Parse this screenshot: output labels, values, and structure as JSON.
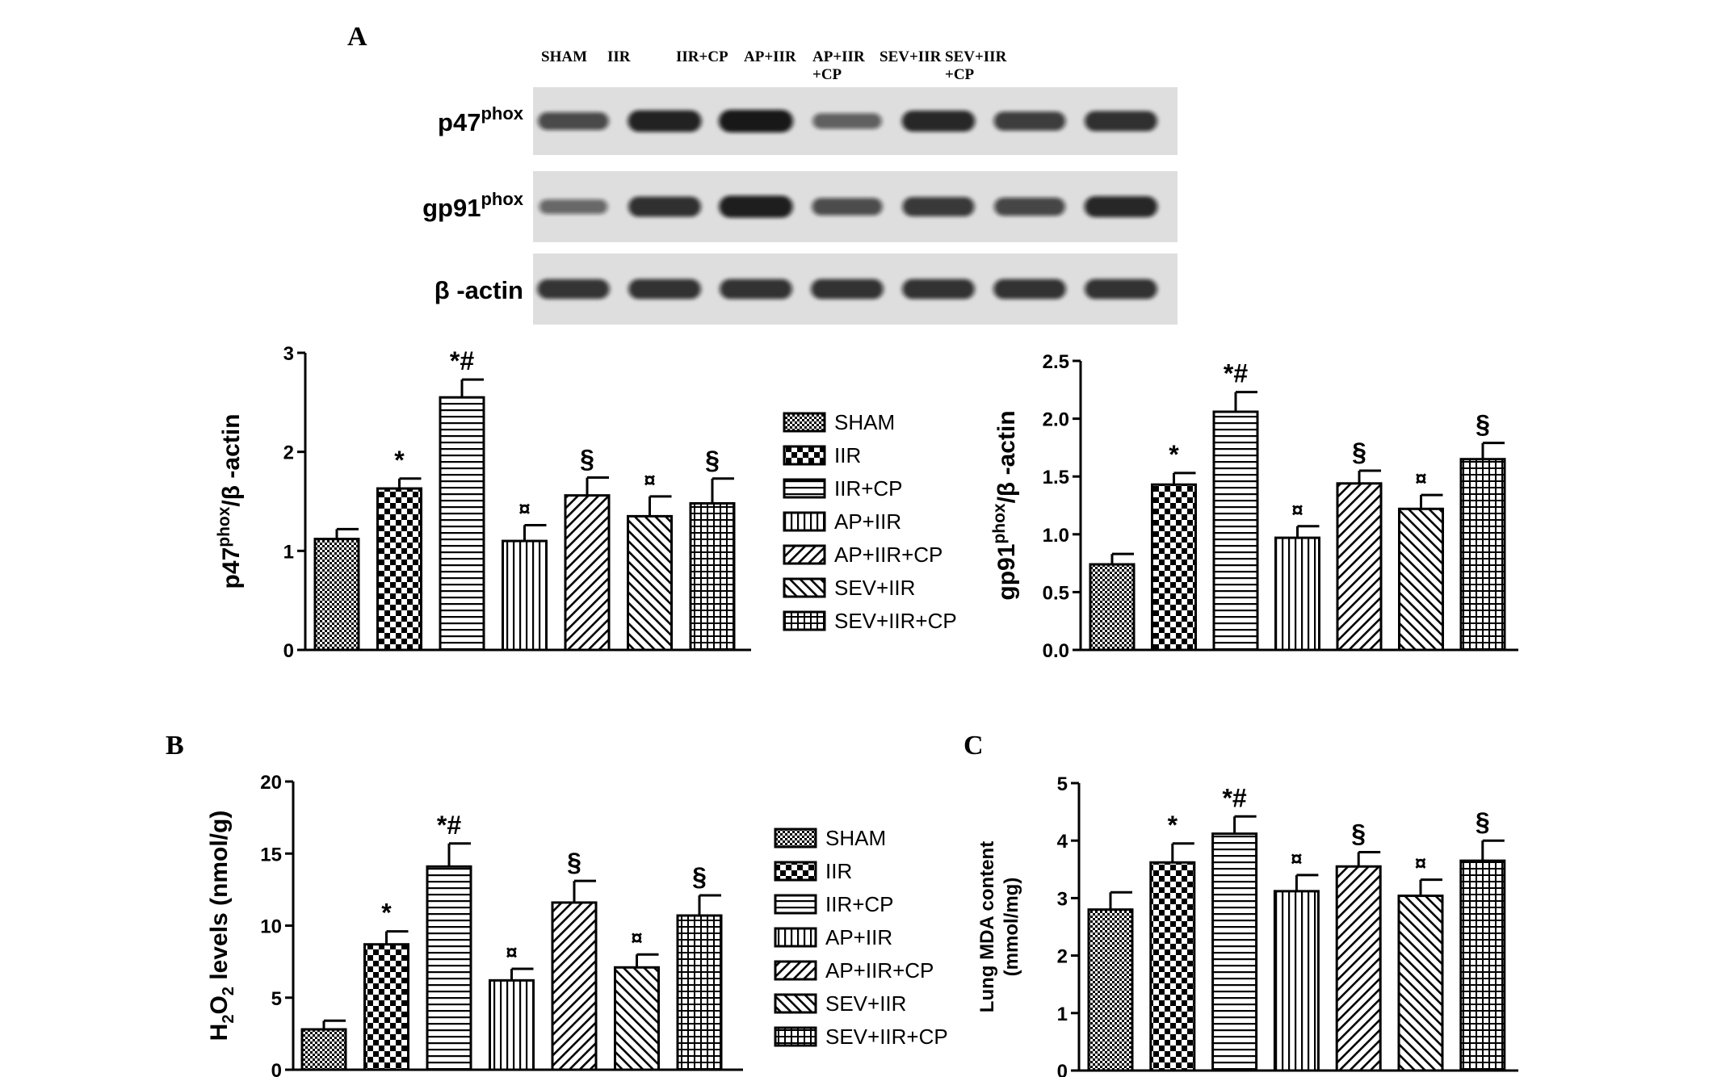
{
  "panels": {
    "a": "A",
    "b": "B",
    "c": "C"
  },
  "blot": {
    "lanes": [
      "SHAM",
      "IIR",
      "IIR+CP",
      "AP+IIR",
      "AP+IIR\n+CP",
      "SEV+IIR",
      "SEV+IIR\n+CP"
    ],
    "rows": [
      {
        "label_main": "p47",
        "label_sup": "phox",
        "intensity": [
          0.62,
          0.92,
          1.0,
          0.45,
          0.88,
          0.72,
          0.82
        ]
      },
      {
        "label_main": "gp91",
        "label_sup": "phox",
        "intensity": [
          0.38,
          0.82,
          0.95,
          0.6,
          0.75,
          0.65,
          0.88
        ]
      },
      {
        "label_main": "β -actin",
        "label_sup": "",
        "intensity": [
          0.78,
          0.8,
          0.8,
          0.8,
          0.8,
          0.8,
          0.8
        ]
      }
    ]
  },
  "legend": [
    "SHAM",
    "IIR",
    "IIR+CP",
    "AP+IIR",
    "AP+IIR+CP",
    "SEV+IIR",
    "SEV+IIR+CP"
  ],
  "patterns": [
    "fine-check",
    "big-check",
    "h-stripe",
    "v-stripe",
    "diag-up",
    "diag-down",
    "grid"
  ],
  "chart_data": [
    {
      "id": "p47",
      "type": "bar",
      "categories": [
        "SHAM",
        "IIR",
        "IIR+CP",
        "AP+IIR",
        "AP+IIR+CP",
        "SEV+IIR",
        "SEV+IIR+CP"
      ],
      "values": [
        1.12,
        1.63,
        2.55,
        1.1,
        1.56,
        1.35,
        1.48
      ],
      "errors": [
        0.1,
        0.1,
        0.18,
        0.16,
        0.18,
        0.2,
        0.25
      ],
      "annotations": [
        "",
        "*",
        "*#",
        "¤",
        "§",
        "¤",
        "§"
      ],
      "ylabel_main": "p47",
      "ylabel_sup": "phox",
      "ylabel_rest": "/β -actin",
      "ylim": [
        0,
        3
      ],
      "yticks": [
        "0",
        "1",
        "2",
        "3"
      ]
    },
    {
      "id": "gp91",
      "type": "bar",
      "categories": [
        "SHAM",
        "IIR",
        "IIR+CP",
        "AP+IIR",
        "AP+IIR+CP",
        "SEV+IIR",
        "SEV+IIR+CP"
      ],
      "values": [
        0.74,
        1.43,
        2.06,
        0.97,
        1.44,
        1.22,
        1.65
      ],
      "errors": [
        0.09,
        0.1,
        0.17,
        0.1,
        0.11,
        0.12,
        0.14
      ],
      "annotations": [
        "",
        "*",
        "*#",
        "¤",
        "§",
        "¤",
        "§"
      ],
      "ylabel_main": "gp91",
      "ylabel_sup": "phox",
      "ylabel_rest": "/β -actin",
      "ylim": [
        0,
        2.5
      ],
      "yticks": [
        "0.0",
        "0.5",
        "1.0",
        "1.5",
        "2.0",
        "2.5"
      ]
    },
    {
      "id": "h2o2",
      "type": "bar",
      "categories": [
        "SHAM",
        "IIR",
        "IIR+CP",
        "AP+IIR",
        "AP+IIR+CP",
        "SEV+IIR",
        "SEV+IIR+CP"
      ],
      "values": [
        2.8,
        8.7,
        14.1,
        6.2,
        11.6,
        7.1,
        10.7
      ],
      "errors": [
        0.6,
        0.9,
        1.6,
        0.8,
        1.5,
        0.9,
        1.4
      ],
      "annotations": [
        "",
        "*",
        "*#",
        "¤",
        "§",
        "¤",
        "§"
      ],
      "ylabel_main": "H",
      "ylabel_sub": "2",
      "ylabel_mid": "O",
      "ylabel_sub2": "2",
      "ylabel_rest": " levels (nmol/g)",
      "ylim": [
        0,
        20
      ],
      "yticks": [
        "0",
        "5",
        "10",
        "15",
        "20"
      ]
    },
    {
      "id": "mda",
      "type": "bar",
      "categories": [
        "SHAM",
        "IIR",
        "IIR+CP",
        "AP+IIR",
        "AP+IIR+CP",
        "SEV+IIR",
        "SEV+IIR+CP"
      ],
      "values": [
        2.8,
        3.62,
        4.12,
        3.12,
        3.55,
        3.04,
        3.65
      ],
      "errors": [
        0.3,
        0.33,
        0.3,
        0.28,
        0.25,
        0.28,
        0.35
      ],
      "annotations": [
        "",
        "*",
        "*#",
        "¤",
        "§",
        "¤",
        "§"
      ],
      "ylabel_line1": "Lung MDA content",
      "ylabel_line2": "(mmol/mg)",
      "ylim": [
        0,
        5
      ],
      "yticks": [
        "0",
        "1",
        "2",
        "3",
        "4",
        "5"
      ]
    }
  ]
}
